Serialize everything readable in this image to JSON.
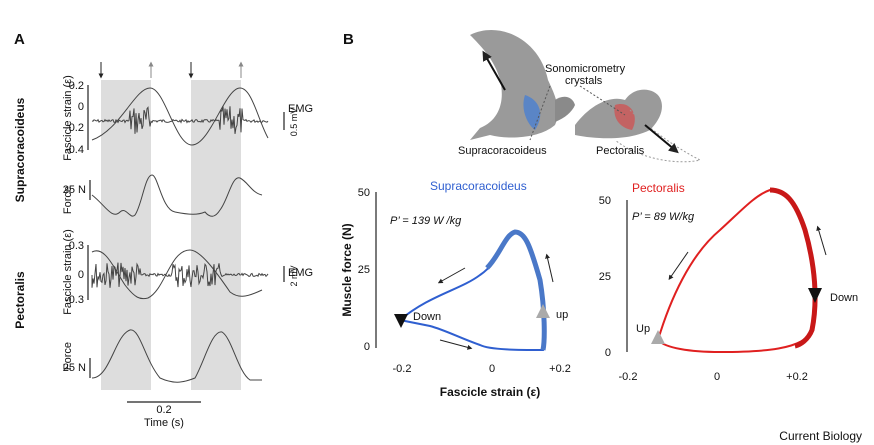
{
  "panel_a": {
    "label": "A",
    "muscle_top": "Supracoracoideus",
    "muscle_bottom": "Pectoralis",
    "strain_label": "Fascicle strain (ε)",
    "strain_ticks_top": [
      "0.2",
      "0",
      "-0.2",
      "-0.4"
    ],
    "emg_label": "EMG",
    "emg_scale_top": "0.5 mV",
    "force_label": "Force",
    "force_scale": "25 N",
    "strain_ticks_bottom": [
      "0.3",
      "0",
      "-0.3"
    ],
    "emg_scale_bottom": "2 mV",
    "time_scale": "0.2",
    "time_label": "Time (s)"
  },
  "panel_b": {
    "label": "B",
    "crystals_line1": "Sonomicrometry",
    "crystals_line2": "crystals",
    "bird_supra": "Supracoracoideus",
    "bird_pect": "Pectoralis",
    "y_label": "Muscle force (N)",
    "x_label": "Fascicle strain (ε)",
    "loop_supra": {
      "title": "Supracoracoideus",
      "power": "P’ = 139 W /kg",
      "yticks": [
        "50",
        "25",
        "0"
      ],
      "xticks": [
        "-0.2",
        "0",
        "+0.2"
      ],
      "down": "Down",
      "up": "up"
    },
    "loop_pect": {
      "title": "Pectoralis",
      "power": "P’  = 89 W/kg",
      "yticks": [
        "50",
        "25",
        "0"
      ],
      "xticks": [
        "-0.2",
        "0",
        "+0.2"
      ],
      "up": "Up",
      "down": "Down"
    }
  },
  "footer": "Current Biology"
}
